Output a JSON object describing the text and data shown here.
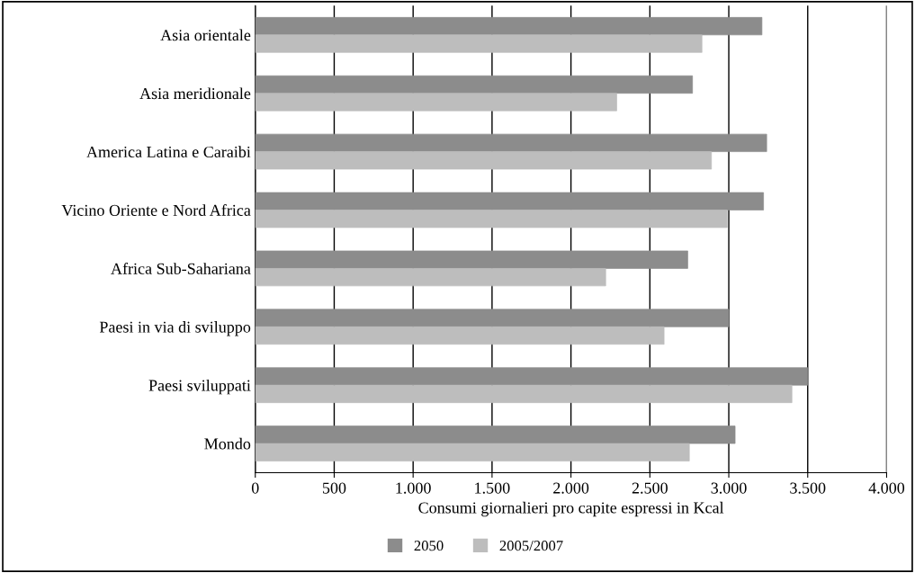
{
  "chart_data": {
    "type": "bar",
    "orientation": "horizontal",
    "xlabel": "Consumi giornalieri pro capite espressi in Kcal",
    "categories": [
      "Asia orientale",
      "Asia meridionale",
      "America Latina e Caraibi",
      "Vicino Oriente e Nord Africa",
      "Africa Sub-Sahariana",
      "Paesi in via di sviluppo",
      "Paesi sviluppati",
      "Mondo"
    ],
    "series": [
      {
        "name": "2050",
        "color": "#8c8c8c",
        "values": [
          3210,
          2770,
          3240,
          3220,
          2740,
          3000,
          3500,
          3040
        ]
      },
      {
        "name": "2005/2007",
        "color": "#bdbdbd",
        "values": [
          2830,
          2290,
          2890,
          2990,
          2220,
          2590,
          3400,
          2750
        ]
      }
    ],
    "xlim": [
      0,
      4000
    ],
    "xticks": [
      0,
      {
        "value": 500,
        "label": "500"
      },
      {
        "value": 1000,
        "label": "1.000"
      },
      {
        "value": 1500,
        "label": "1.500"
      },
      {
        "value": 2000,
        "label": "2.000"
      },
      {
        "value": 2500,
        "label": "2.500"
      },
      {
        "value": 3000,
        "label": "3.000"
      },
      {
        "value": 3500,
        "label": "3.500"
      },
      {
        "value": 4000,
        "label": "4.000"
      }
    ],
    "grid": "x",
    "legend": "bottom"
  }
}
